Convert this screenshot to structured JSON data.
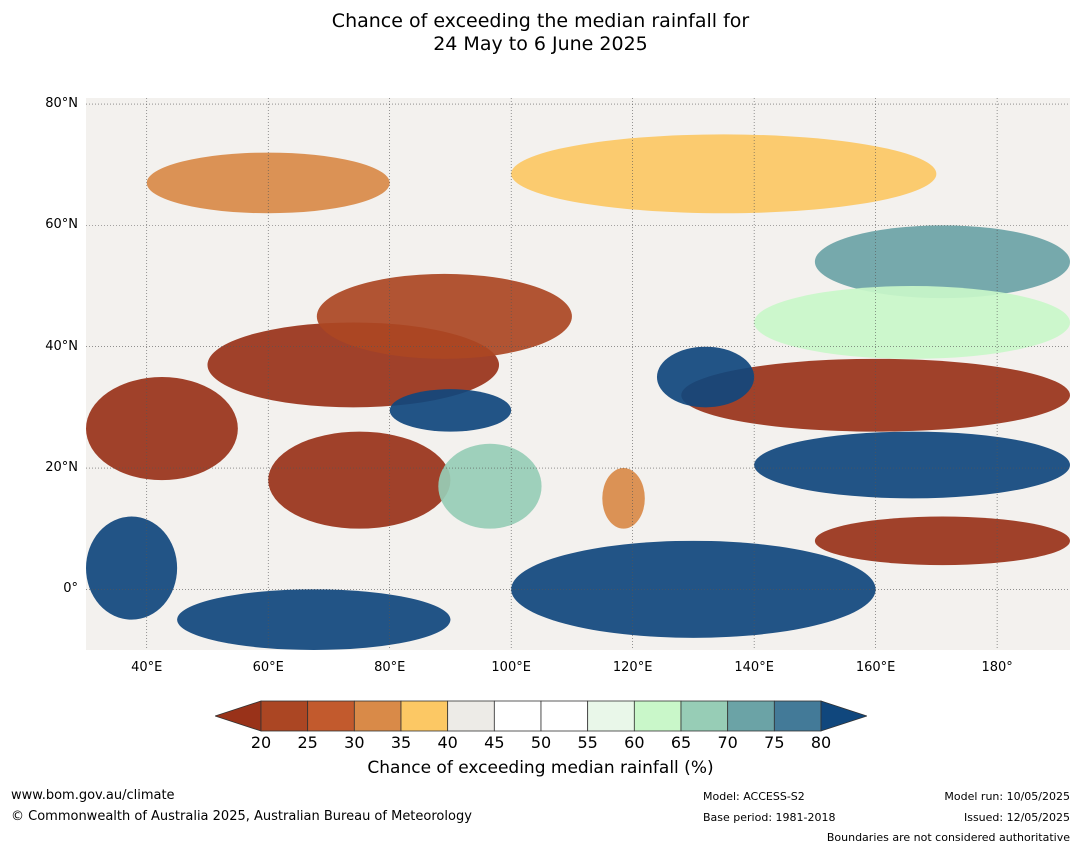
{
  "title": {
    "line1": "Chance of exceeding the median rainfall for",
    "line2": "24 May to 6 June 2025"
  },
  "map": {
    "lat_labels": [
      "80°N",
      "60°N",
      "40°N",
      "20°N",
      "0°"
    ],
    "lon_labels": [
      "40°E",
      "60°E",
      "80°E",
      "100°E",
      "120°E",
      "140°E",
      "160°E",
      "180°"
    ],
    "lon_range": [
      30,
      192
    ],
    "lat_range": [
      -10,
      81
    ],
    "regions": [
      {
        "name": "central-asia-dry",
        "category": "20-25",
        "color": "#993219",
        "lon": [
          50,
          98
        ],
        "lat": [
          30,
          44
        ]
      },
      {
        "name": "mongolia-dry",
        "category": "25-30",
        "color": "#ab4623",
        "lon": [
          68,
          110
        ],
        "lat": [
          38,
          52
        ]
      },
      {
        "name": "arabia-dry",
        "category": "20-25",
        "color": "#993219",
        "lon": [
          30,
          55
        ],
        "lat": [
          18,
          35
        ]
      },
      {
        "name": "india-dry",
        "category": "20-25",
        "color": "#993219",
        "lon": [
          60,
          90
        ],
        "lat": [
          10,
          26
        ]
      },
      {
        "name": "pacific-dry-north",
        "category": "20-25",
        "color": "#993219",
        "lon": [
          128,
          192
        ],
        "lat": [
          26,
          38
        ]
      },
      {
        "name": "pacific-dry-south",
        "category": "20-25",
        "color": "#993219",
        "lon": [
          150,
          192
        ],
        "lat": [
          4,
          12
        ]
      },
      {
        "name": "south-china-sea-dry",
        "category": "30-35",
        "color": "#d98a48",
        "lon": [
          115,
          122
        ],
        "lat": [
          10,
          20
        ]
      },
      {
        "name": "siberia-dry-1",
        "category": "35-40",
        "color": "#fcc864",
        "lon": [
          100,
          170
        ],
        "lat": [
          62,
          75
        ]
      },
      {
        "name": "siberia-dry-2",
        "category": "30-35",
        "color": "#d98a48",
        "lon": [
          40,
          80
        ],
        "lat": [
          62,
          72
        ]
      },
      {
        "name": "tibet-wet",
        "category": "75-80",
        "color": "#10477d",
        "lon": [
          80,
          100
        ],
        "lat": [
          26,
          33
        ]
      },
      {
        "name": "korea-wet",
        "category": "75-80",
        "color": "#10477d",
        "lon": [
          124,
          140
        ],
        "lat": [
          30,
          40
        ]
      },
      {
        "name": "pacific-wet",
        "category": "75-80",
        "color": "#10477d",
        "lon": [
          140,
          192
        ],
        "lat": [
          15,
          26
        ]
      },
      {
        "name": "maritime-wet",
        "category": "75-80",
        "color": "#10477d",
        "lon": [
          100,
          160
        ],
        "lat": [
          -8,
          8
        ]
      },
      {
        "name": "indian-ocean-wet",
        "category": "75-80",
        "color": "#10477d",
        "lon": [
          45,
          90
        ],
        "lat": [
          -10,
          0
        ]
      },
      {
        "name": "east-africa-wet",
        "category": "75-80",
        "color": "#10477d",
        "lon": [
          30,
          45
        ],
        "lat": [
          -5,
          12
        ]
      },
      {
        "name": "bay-of-bengal-wet",
        "category": "60-70",
        "color": "#97cdb6",
        "lon": [
          88,
          105
        ],
        "lat": [
          10,
          24
        ]
      },
      {
        "name": "okhotsk-wet",
        "category": "65-75",
        "color": "#6ba3a6",
        "lon": [
          150,
          192
        ],
        "lat": [
          48,
          60
        ]
      },
      {
        "name": "north-pacific-green",
        "category": "60-65",
        "color": "#c9f7c9",
        "lon": [
          140,
          192
        ],
        "lat": [
          38,
          50
        ]
      }
    ]
  },
  "colorbar": {
    "ticks": [
      "20",
      "25",
      "30",
      "35",
      "40",
      "45",
      "50",
      "55",
      "60",
      "65",
      "70",
      "75",
      "80"
    ],
    "colors": [
      "#993219",
      "#ab4623",
      "#c25a2d",
      "#d98a48",
      "#fcc864",
      "#edebe7",
      "#ffffff",
      "#ffffff",
      "#e9f7e9",
      "#c9f7c9",
      "#97cdb6",
      "#6ba3a6",
      "#437a98",
      "#10477d"
    ],
    "label": "Chance of exceeding median rainfall (%)"
  },
  "footer": {
    "url": "www.bom.gov.au/climate",
    "copyright": "© Commonwealth of Australia 2025, Australian Bureau of Meteorology",
    "model": "Model: ACCESS-S2",
    "base_period": "Base period: 1981-2018",
    "model_run": "Model run: 10/05/2025",
    "issued": "Issued: 12/05/2025",
    "disclaimer": "Boundaries are not considered authoritative"
  }
}
